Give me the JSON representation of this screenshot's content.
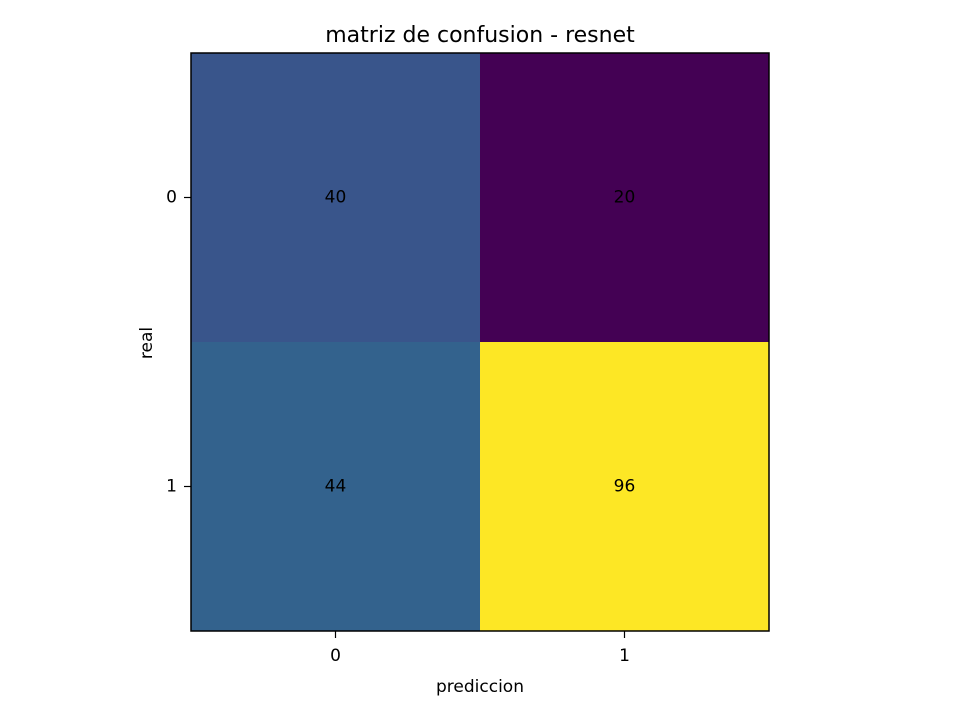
{
  "chart_data": {
    "type": "heatmap",
    "title": "matriz de confusion - resnet",
    "xlabel": "prediccion",
    "ylabel": "real",
    "x_categories": [
      "0",
      "1"
    ],
    "y_categories": [
      "0",
      "1"
    ],
    "values": [
      [
        40,
        20
      ],
      [
        44,
        96
      ]
    ],
    "colormap": "viridis",
    "colors": {
      "low": "#440154",
      "high": "#fde725",
      "cell_text": "#000000",
      "frame": "#000000"
    },
    "grid": false,
    "colorbar": false
  }
}
